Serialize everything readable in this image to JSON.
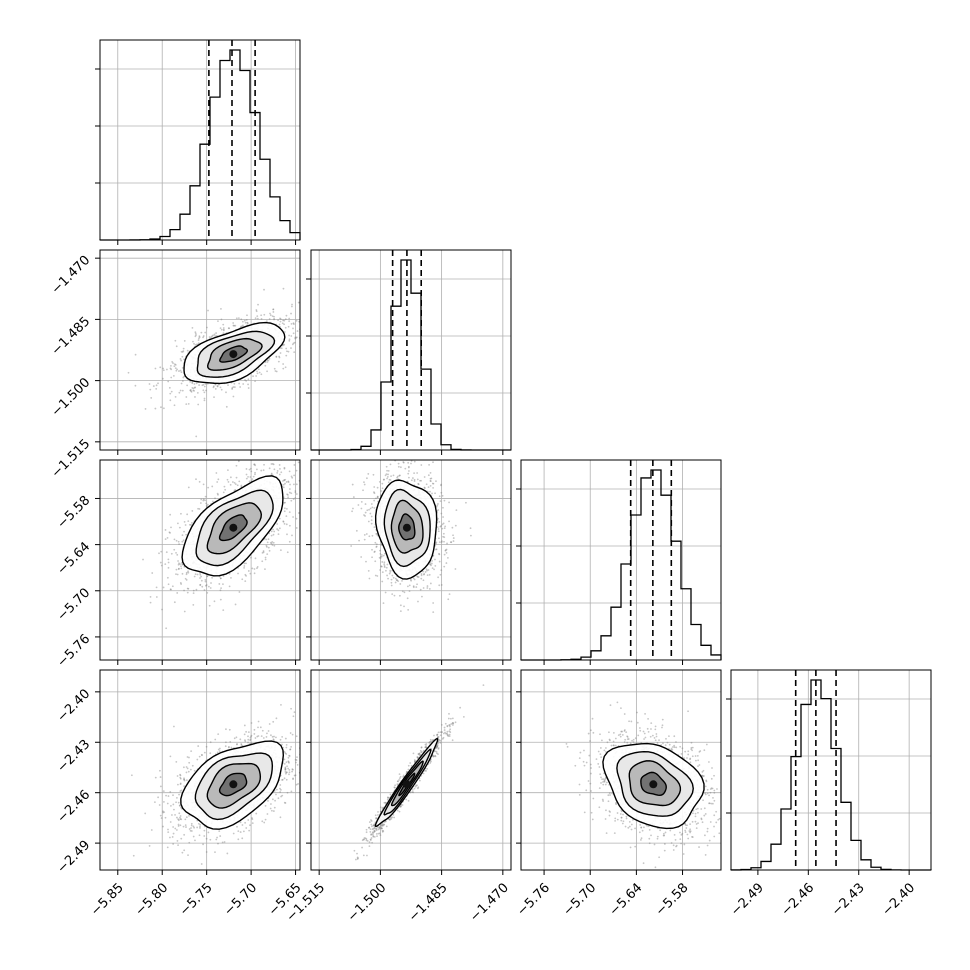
{
  "chart_data": {
    "type": "corner",
    "grid": true,
    "colors": {
      "line": "#000000",
      "grid": "#b0b0b0",
      "points": "#808080"
    },
    "parameters": [
      {
        "range": [
          -5.87,
          -5.645
        ],
        "ticks": [
          -5.85,
          -5.8,
          -5.75,
          -5.7,
          -5.65
        ],
        "tick_labels": [
          "−5.85",
          "−5.80",
          "−5.75",
          "−5.70",
          "−5.65"
        ],
        "mean": -5.72,
        "sd": 0.027,
        "quantiles": [
          -5.7475,
          -5.7215,
          -5.6955
        ]
      },
      {
        "range": [
          -1.517,
          -1.468
        ],
        "ticks": [
          -1.515,
          -1.5,
          -1.485,
          -1.47
        ],
        "tick_labels": [
          "−1.515",
          "−1.500",
          "−1.485",
          "−1.470"
        ],
        "mean": -1.4935,
        "sd": 0.0035,
        "quantiles": [
          -1.497,
          -1.4935,
          -1.49
        ]
      },
      {
        "range": [
          -5.79,
          -5.53
        ],
        "ticks": [
          -5.76,
          -5.7,
          -5.64,
          -5.58
        ],
        "tick_labels": [
          "−5.76",
          "−5.70",
          "−5.64",
          "−5.58"
        ],
        "mean": -5.618,
        "sd": 0.03,
        "quantiles": [
          -5.6474,
          -5.6186,
          -5.5946
        ]
      },
      {
        "range": [
          -2.506,
          -2.387
        ],
        "ticks": [
          -2.49,
          -2.46,
          -2.43,
          -2.4
        ],
        "tick_labels": [
          "−2.49",
          "−2.46",
          "−2.43",
          "−2.40"
        ],
        "mean": -2.455,
        "sd": 0.012,
        "quantiles": [
          -2.4675,
          -2.4555,
          -2.4435
        ]
      }
    ],
    "correlations": [
      {
        "row": 1,
        "col": 0,
        "rho": 0.55
      },
      {
        "row": 2,
        "col": 0,
        "rho": 0.6
      },
      {
        "row": 2,
        "col": 1,
        "rho": -0.1
      },
      {
        "row": 3,
        "col": 0,
        "rho": 0.45
      },
      {
        "row": 3,
        "col": 1,
        "rho": 0.97
      },
      {
        "row": 3,
        "col": 2,
        "rho": -0.25
      }
    ]
  }
}
